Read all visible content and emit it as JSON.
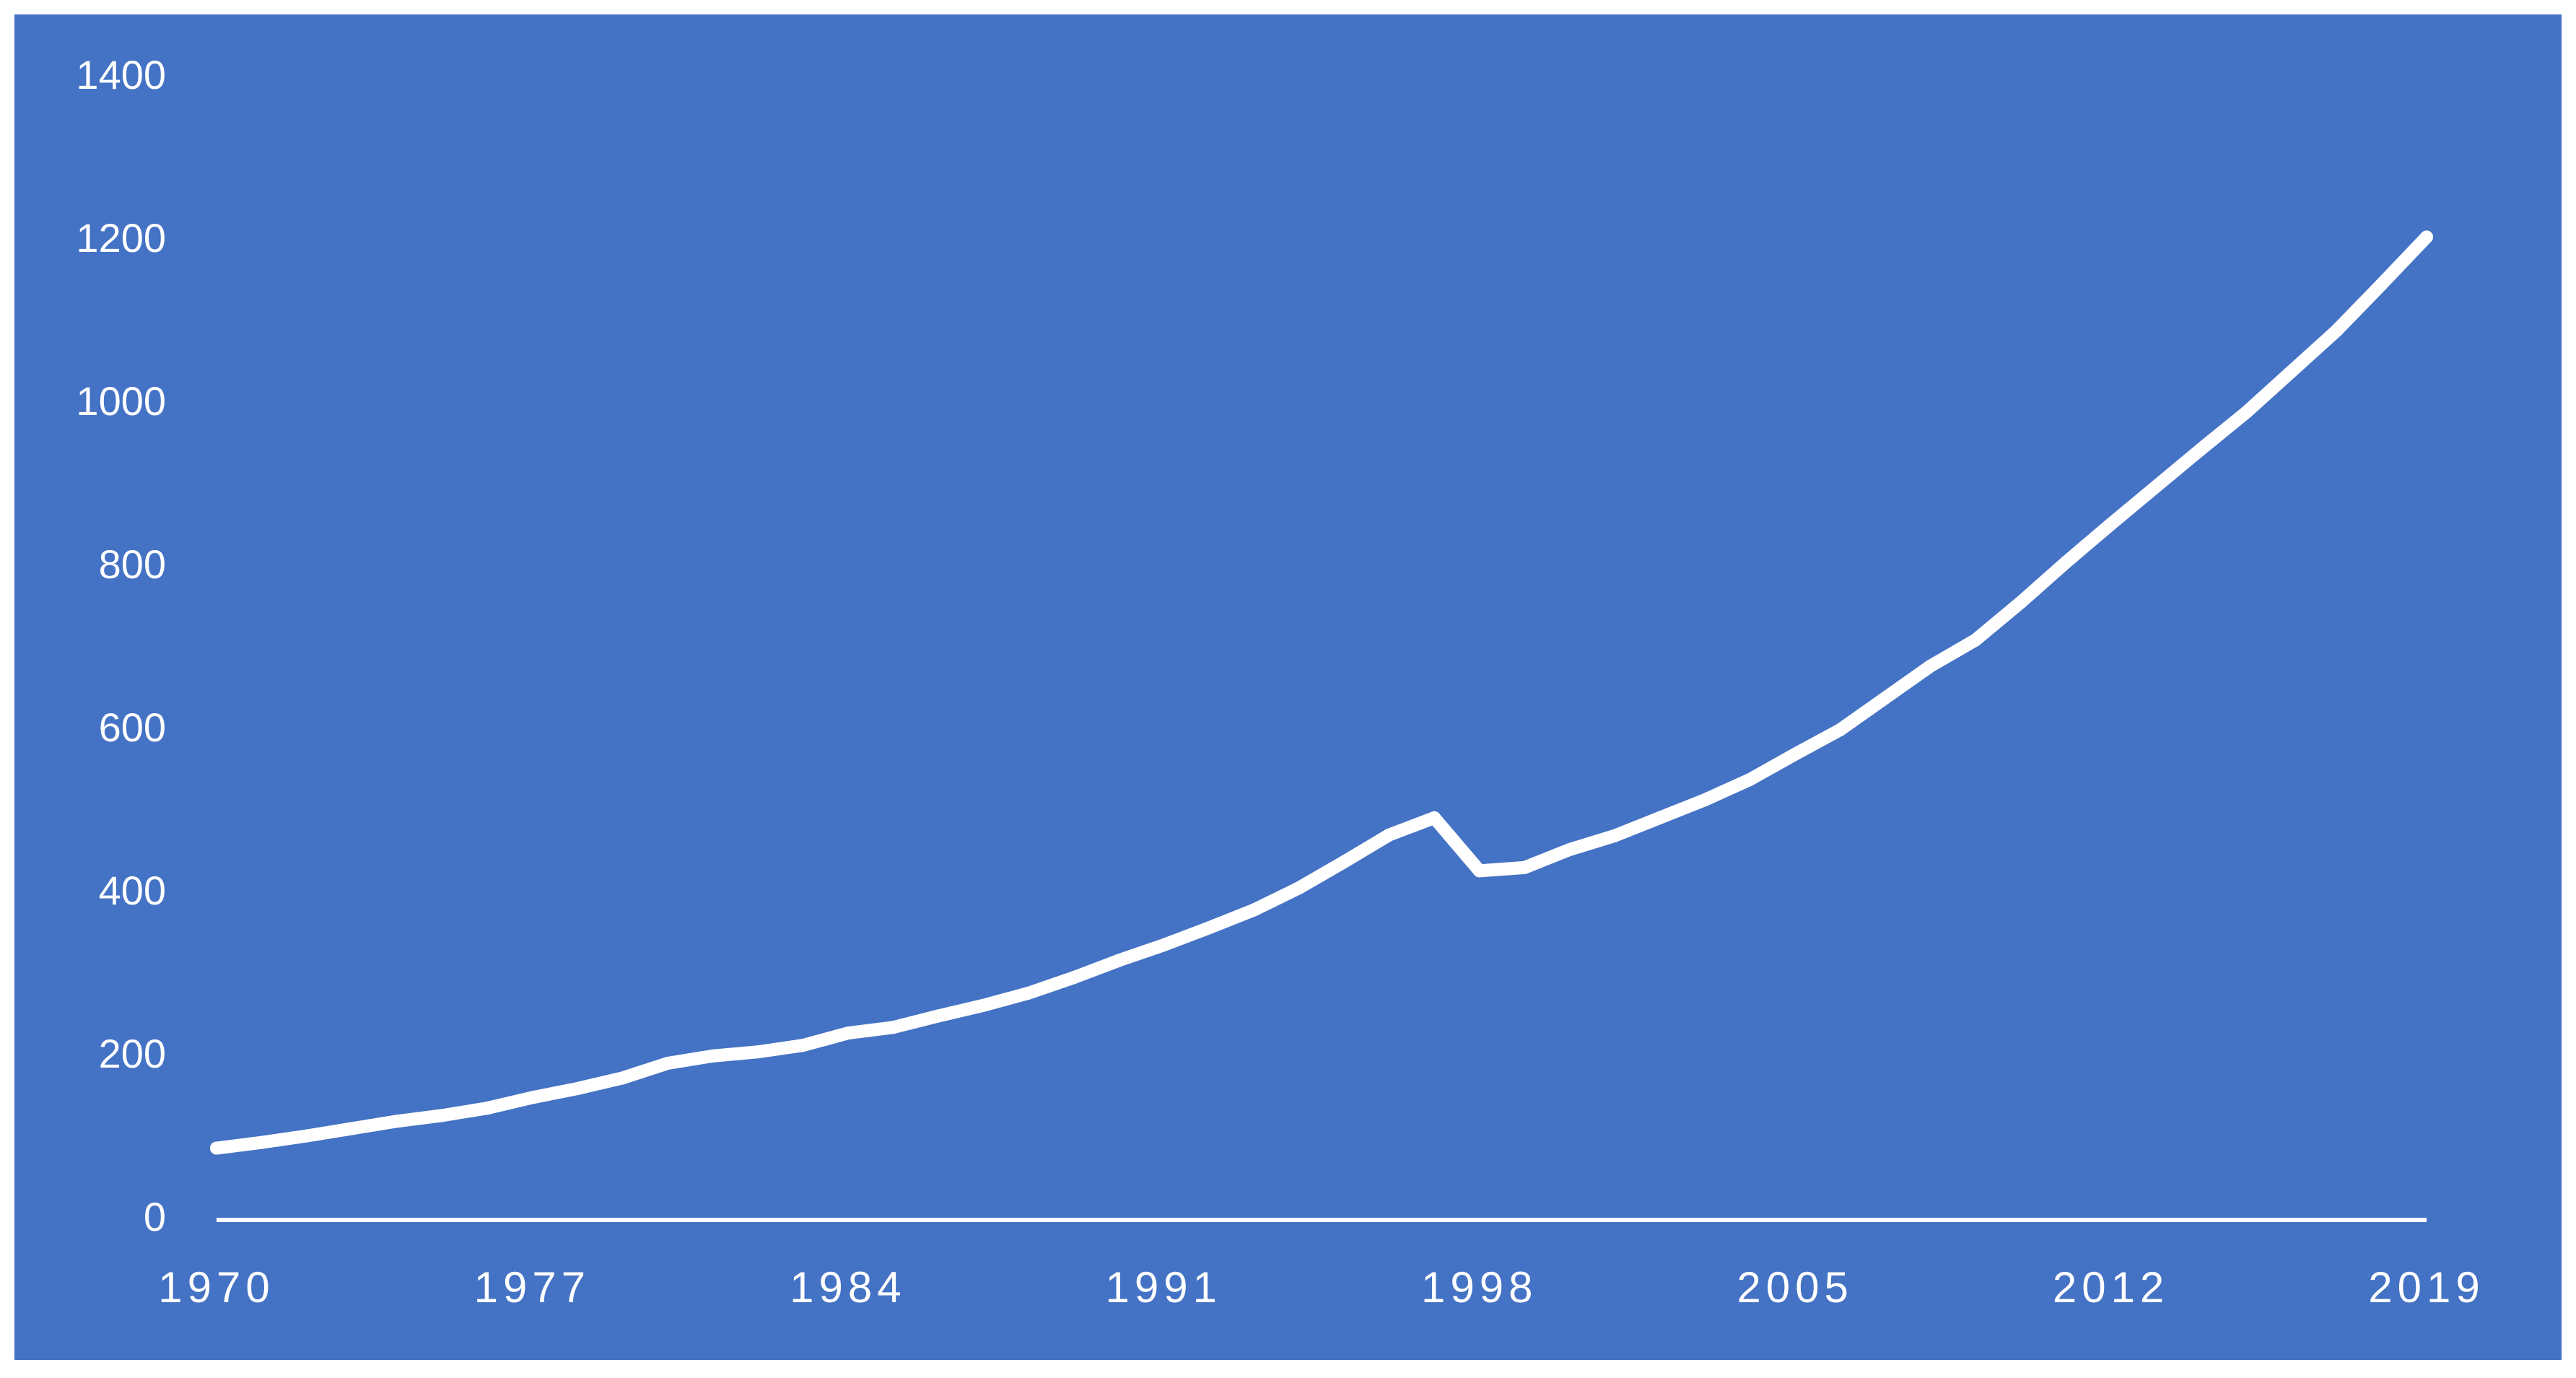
{
  "colors": {
    "background": "#4472C4",
    "frame": "#ffffff",
    "line": "#ffffff",
    "text": "#ffffff"
  },
  "chart_data": {
    "type": "area",
    "title": "",
    "xlabel": "",
    "ylabel": "",
    "grid": false,
    "legend": "none",
    "xlim": [
      1970,
      2019
    ],
    "ylim": [
      0,
      1400
    ],
    "y_ticks": [
      0,
      200,
      400,
      600,
      800,
      1000,
      1200,
      1400
    ],
    "x_ticks": [
      1970,
      1977,
      1984,
      1991,
      1998,
      2005,
      2012,
      2019
    ],
    "series": [
      {
        "x": [
          1970,
          1971,
          1972,
          1973,
          1974,
          1975,
          1976,
          1977,
          1978,
          1979,
          1980,
          1981,
          1982,
          1983,
          1984,
          1985,
          1986,
          1987,
          1988,
          1989,
          1990,
          1991,
          1992,
          1993,
          1994,
          1995,
          1996,
          1997,
          1998,
          1999,
          2000,
          2001,
          2002,
          2003,
          2004,
          2005,
          2006,
          2007,
          2008,
          2009,
          2010,
          2011,
          2012,
          2013,
          2014,
          2015,
          2016,
          2017,
          2018,
          2019
        ],
        "values": [
          88,
          95,
          103,
          112,
          121,
          128,
          137,
          150,
          161,
          174,
          192,
          201,
          206,
          214,
          229,
          236,
          250,
          263,
          278,
          297,
          318,
          337,
          358,
          380,
          407,
          439,
          472,
          493,
          428,
          432,
          454,
          471,
          493,
          515,
          540,
          571,
          601,
          640,
          679,
          711,
          757,
          806,
          853,
          899,
          945,
          990,
          1040,
          1090,
          1147,
          1205
        ]
      }
    ]
  }
}
